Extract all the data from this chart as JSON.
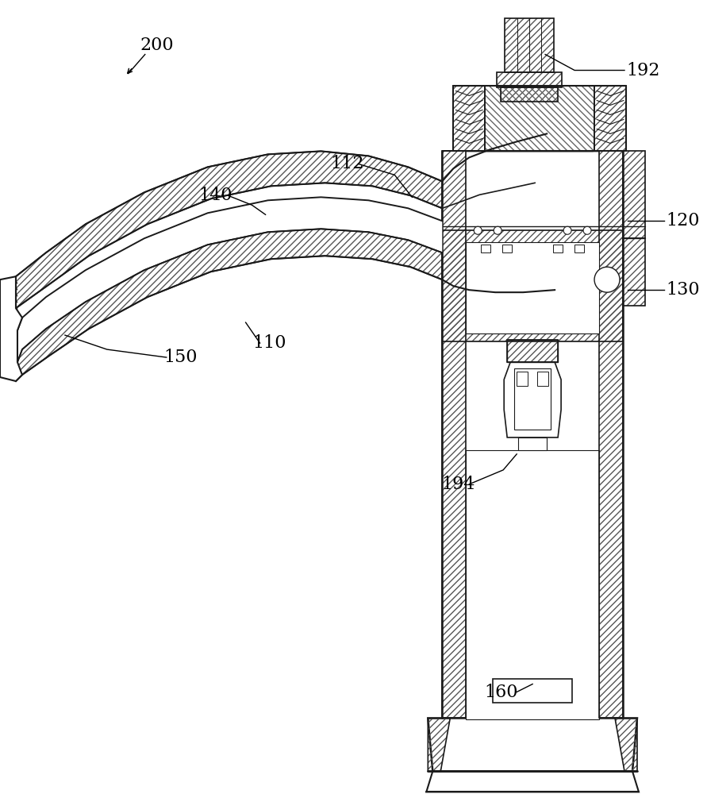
{
  "bg_color": "#ffffff",
  "lc": "#1a1a1a",
  "fig_width": 8.91,
  "fig_height": 10.0,
  "dpi": 100
}
